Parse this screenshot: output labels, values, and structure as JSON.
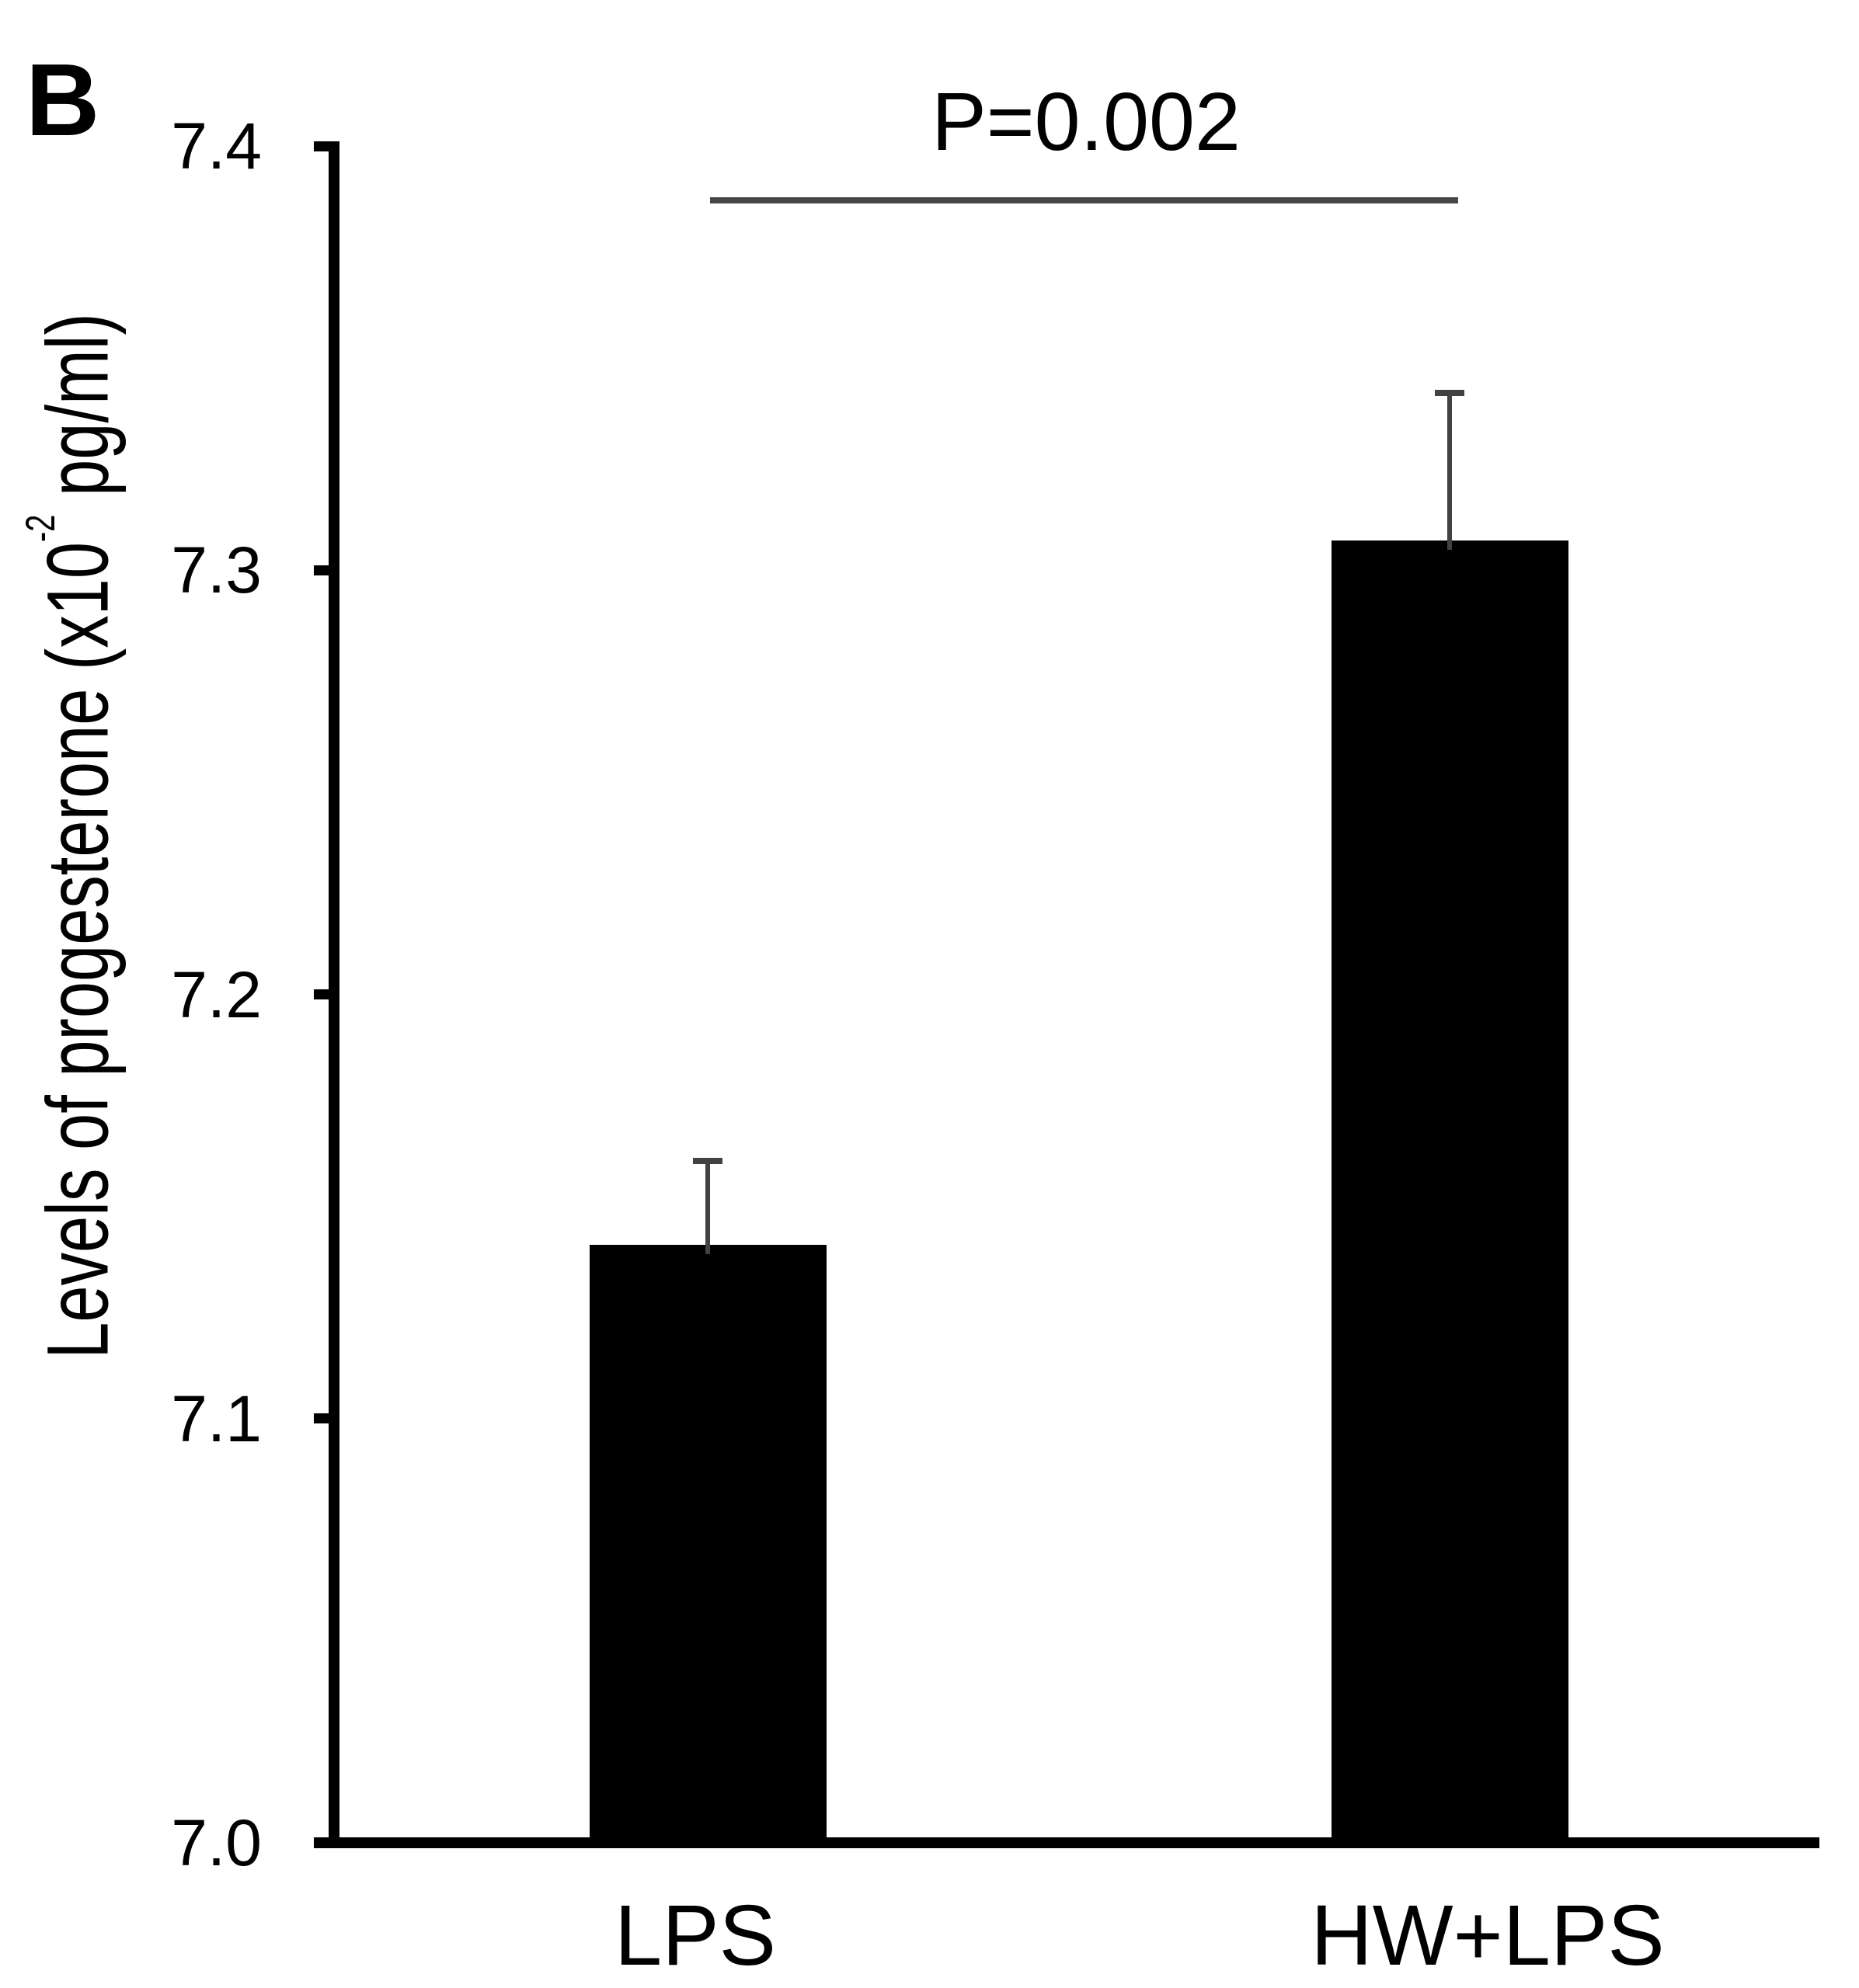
{
  "panel_label": "B",
  "significance": {
    "label": "P=0.002"
  },
  "chart_data": {
    "type": "bar",
    "categories": [
      "LPS",
      "HW+LPS"
    ],
    "values": [
      7.141,
      7.307
    ],
    "errors_up": [
      0.02,
      0.035
    ],
    "title": "",
    "xlabel": "",
    "ylabel": "Levels of progesterone (x10^-2 pg/ml)",
    "ylabel_parts": {
      "base": "Levels of progesterone (x10",
      "sup": "-2",
      "rest": " pg/ml)"
    },
    "ylim": [
      7.0,
      7.4
    ],
    "yticks": [
      "7.0",
      "7.1",
      "7.2",
      "7.3",
      "7.4"
    ],
    "bar_color": "#000000",
    "grid": false,
    "legend": false,
    "significance": {
      "label": "P=0.002",
      "between": [
        "LPS",
        "HW+LPS"
      ],
      "p_value": 0.002
    }
  }
}
